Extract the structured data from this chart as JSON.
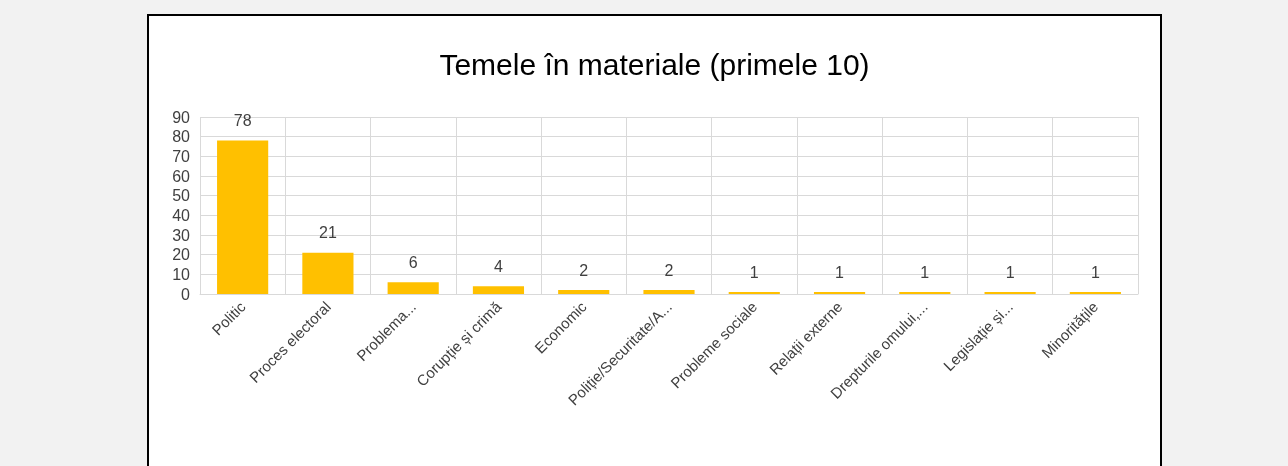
{
  "chart_data": {
    "type": "bar",
    "title": "Temele în materiale (primele 10)",
    "categories": [
      "Politic",
      "Proces electoral",
      "Problema...",
      "Corupție și crimă",
      "Economic",
      "Poliție/Securitate/A...",
      "Probleme sociale",
      "Relații externe",
      "Drepturile omului,...",
      "Legislație și...",
      "Minoritățile"
    ],
    "values": [
      78,
      21,
      6,
      4,
      2,
      2,
      1,
      1,
      1,
      1,
      1
    ],
    "color": "#ffc000",
    "ylim": [
      0,
      90
    ],
    "yticks": [
      0,
      10,
      20,
      30,
      40,
      50,
      60,
      70,
      80,
      90
    ],
    "grid": true,
    "data_labels": true
  }
}
